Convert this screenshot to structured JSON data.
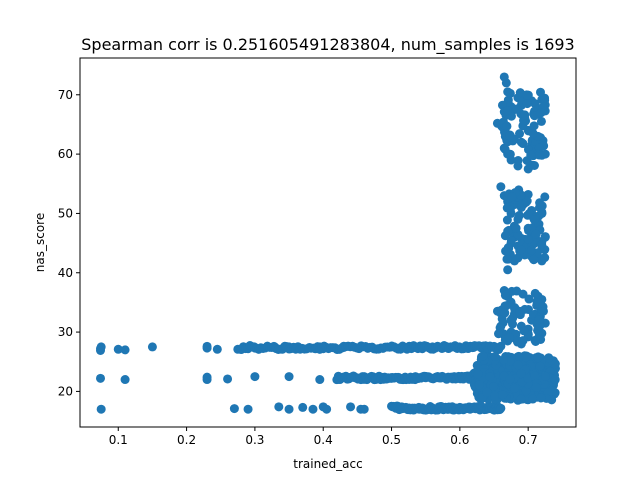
{
  "chart_data": {
    "type": "scatter",
    "title": "Spearman corr is 0.251605491283804, num_samples is 1693",
    "xlabel": "trained_acc",
    "ylabel": "nas_score",
    "xlim": [
      0.044,
      0.77
    ],
    "ylim": [
      14.0,
      76.2
    ],
    "xticks": [
      0.1,
      0.2,
      0.3,
      0.4,
      0.5,
      0.6,
      0.7
    ],
    "xtick_labels": [
      "0.1",
      "0.2",
      "0.3",
      "0.4",
      "0.5",
      "0.6",
      "0.7"
    ],
    "yticks": [
      20,
      30,
      40,
      50,
      60,
      70
    ],
    "ytick_labels": [
      "20",
      "30",
      "40",
      "50",
      "60",
      "70"
    ],
    "grid": false,
    "legend": "none",
    "marker_color": "#1f77b4",
    "series": [
      {
        "points": [
          [
            0.074,
            27.2
          ],
          [
            0.074,
            26.9
          ],
          [
            0.075,
            27.5
          ],
          [
            0.074,
            22.2
          ],
          [
            0.075,
            17.0
          ],
          [
            0.1,
            27.1
          ],
          [
            0.11,
            27.0
          ],
          [
            0.11,
            22.0
          ],
          [
            0.15,
            27.5
          ],
          [
            0.23,
            27.3
          ],
          [
            0.23,
            27.6
          ],
          [
            0.23,
            22.4
          ],
          [
            0.23,
            22.0
          ],
          [
            0.245,
            27.1
          ],
          [
            0.26,
            22.1
          ],
          [
            0.27,
            17.1
          ],
          [
            0.275,
            27.1
          ],
          [
            0.29,
            27.2
          ],
          [
            0.29,
            17.0
          ],
          [
            0.3,
            27.3
          ],
          [
            0.3,
            22.5
          ],
          [
            0.33,
            27.4
          ],
          [
            0.335,
            17.4
          ],
          [
            0.34,
            27.1
          ],
          [
            0.35,
            27.5
          ],
          [
            0.35,
            22.5
          ],
          [
            0.35,
            17.0
          ],
          [
            0.365,
            27.2
          ],
          [
            0.37,
            17.3
          ],
          [
            0.38,
            27.4
          ],
          [
            0.385,
            17.0
          ],
          [
            0.395,
            27.5
          ],
          [
            0.395,
            22.0
          ],
          [
            0.4,
            27.2
          ],
          [
            0.4,
            17.4
          ],
          [
            0.405,
            17.0
          ],
          [
            0.42,
            27.1
          ],
          [
            0.43,
            27.4
          ],
          [
            0.43,
            22.4
          ],
          [
            0.44,
            22.3
          ],
          [
            0.44,
            17.4
          ],
          [
            0.45,
            27.3
          ],
          [
            0.455,
            17.0
          ],
          [
            0.46,
            22.5
          ],
          [
            0.46,
            17.0
          ],
          [
            0.47,
            27.4
          ],
          [
            0.475,
            22.3
          ],
          [
            0.48,
            27.2
          ],
          [
            0.49,
            22.4
          ],
          [
            0.5,
            27.5
          ],
          [
            0.5,
            22.2
          ],
          [
            0.51,
            27.3
          ],
          [
            0.515,
            17.4
          ],
          [
            0.52,
            22.4
          ],
          [
            0.525,
            17.1
          ],
          [
            0.53,
            27.4
          ],
          [
            0.535,
            22.5
          ],
          [
            0.54,
            17.3
          ],
          [
            0.545,
            27.2
          ],
          [
            0.55,
            22.3
          ],
          [
            0.555,
            17.0
          ],
          [
            0.56,
            27.5
          ],
          [
            0.565,
            22.4
          ],
          [
            0.57,
            17.2
          ],
          [
            0.575,
            27.3
          ],
          [
            0.58,
            22.2
          ],
          [
            0.585,
            17.1
          ],
          [
            0.59,
            27.5
          ],
          [
            0.595,
            22.4
          ],
          [
            0.6,
            17.3
          ],
          [
            0.605,
            27.2
          ],
          [
            0.61,
            22.3
          ],
          [
            0.615,
            17.0
          ],
          [
            0.62,
            27.4
          ],
          [
            0.625,
            22.5
          ],
          [
            0.63,
            17.1
          ],
          [
            0.635,
            27.3
          ],
          [
            0.64,
            22.2
          ],
          [
            0.645,
            17.4
          ],
          [
            0.65,
            27.6
          ],
          [
            0.65,
            24.0
          ],
          [
            0.655,
            17.2
          ],
          [
            0.66,
            21.5
          ],
          [
            0.665,
            19.0
          ],
          [
            0.67,
            25.0
          ],
          [
            0.675,
            20.5
          ],
          [
            0.68,
            23.5
          ],
          [
            0.685,
            18.5
          ],
          [
            0.69,
            22.0
          ],
          [
            0.695,
            26.0
          ],
          [
            0.7,
            19.5
          ],
          [
            0.705,
            24.5
          ],
          [
            0.71,
            21.0
          ],
          [
            0.715,
            23.0
          ],
          [
            0.72,
            19.8
          ],
          [
            0.725,
            24.2
          ],
          [
            0.73,
            22.8
          ],
          [
            0.735,
            23.4
          ],
          [
            0.655,
            65.2
          ],
          [
            0.66,
            65.0
          ],
          [
            0.665,
            73.0
          ],
          [
            0.668,
            72.0
          ],
          [
            0.67,
            70.5
          ],
          [
            0.675,
            68.0
          ],
          [
            0.68,
            67.5
          ],
          [
            0.685,
            69.5
          ],
          [
            0.69,
            68.2
          ],
          [
            0.695,
            66.0
          ],
          [
            0.7,
            64.0
          ],
          [
            0.705,
            69.0
          ],
          [
            0.71,
            68.5
          ],
          [
            0.715,
            67.0
          ],
          [
            0.72,
            69.2
          ],
          [
            0.725,
            68.3
          ],
          [
            0.665,
            61.0
          ],
          [
            0.67,
            60.0
          ],
          [
            0.675,
            59.0
          ],
          [
            0.68,
            62.5
          ],
          [
            0.685,
            58.0
          ],
          [
            0.69,
            62.0
          ],
          [
            0.7,
            57.5
          ],
          [
            0.705,
            61.5
          ],
          [
            0.71,
            63.0
          ],
          [
            0.715,
            62.0
          ],
          [
            0.72,
            59.8
          ],
          [
            0.725,
            60.0
          ],
          [
            0.66,
            54.5
          ],
          [
            0.665,
            53.0
          ],
          [
            0.67,
            52.0
          ],
          [
            0.675,
            50.0
          ],
          [
            0.68,
            51.5
          ],
          [
            0.685,
            49.0
          ],
          [
            0.69,
            51.0
          ],
          [
            0.7,
            53.2
          ],
          [
            0.705,
            50.5
          ],
          [
            0.71,
            49.5
          ],
          [
            0.715,
            48.0
          ],
          [
            0.72,
            50.2
          ],
          [
            0.67,
            47.0
          ],
          [
            0.675,
            45.0
          ],
          [
            0.68,
            46.0
          ],
          [
            0.685,
            44.5
          ],
          [
            0.69,
            45.8
          ],
          [
            0.695,
            43.0
          ],
          [
            0.7,
            47.5
          ],
          [
            0.705,
            46.5
          ],
          [
            0.71,
            45.0
          ],
          [
            0.715,
            47.2
          ],
          [
            0.72,
            44.0
          ],
          [
            0.725,
            46.0
          ],
          [
            0.67,
            40.5
          ],
          [
            0.68,
            42.0
          ],
          [
            0.685,
            42.5
          ],
          [
            0.72,
            42.0
          ],
          [
            0.665,
            37.0
          ],
          [
            0.67,
            36.0
          ],
          [
            0.675,
            35.0
          ],
          [
            0.68,
            34.0
          ],
          [
            0.685,
            33.5
          ],
          [
            0.69,
            31.0
          ],
          [
            0.7,
            30.5
          ],
          [
            0.705,
            32.0
          ],
          [
            0.71,
            33.0
          ],
          [
            0.715,
            34.5
          ],
          [
            0.72,
            35.5
          ],
          [
            0.725,
            31.5
          ],
          [
            0.66,
            31.0
          ],
          [
            0.665,
            29.5
          ],
          [
            0.67,
            28.5
          ],
          [
            0.675,
            30.0
          ],
          [
            0.68,
            29.0
          ],
          [
            0.69,
            28.0
          ],
          [
            0.7,
            29.2
          ],
          [
            0.71,
            28.6
          ],
          [
            0.72,
            29.8
          ]
        ],
        "bands": [
          {
            "x_from": 0.28,
            "x_to": 0.66,
            "y": 27.4,
            "count": 120
          },
          {
            "x_from": 0.42,
            "x_to": 0.66,
            "y": 22.3,
            "count": 110
          },
          {
            "x_from": 0.5,
            "x_to": 0.66,
            "y": 17.2,
            "count": 100
          }
        ],
        "clusters": [
          {
            "x_from": 0.62,
            "x_to": 0.74,
            "y_from": 18.5,
            "y_to": 26.0,
            "count": 320
          },
          {
            "x_from": 0.655,
            "x_to": 0.725,
            "y_from": 28.0,
            "y_to": 37.0,
            "count": 60
          },
          {
            "x_from": 0.665,
            "x_to": 0.725,
            "y_from": 42.0,
            "y_to": 54.0,
            "count": 70
          },
          {
            "x_from": 0.665,
            "x_to": 0.725,
            "y_from": 58.0,
            "y_to": 64.0,
            "count": 35
          },
          {
            "x_from": 0.66,
            "x_to": 0.725,
            "y_from": 64.5,
            "y_to": 70.5,
            "count": 40
          }
        ]
      }
    ]
  }
}
